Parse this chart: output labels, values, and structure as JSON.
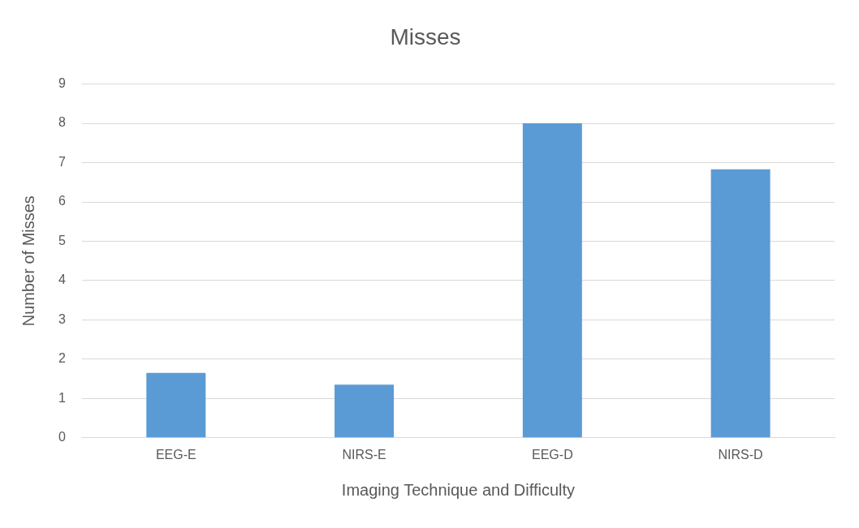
{
  "chart_data": {
    "type": "bar",
    "title": "Misses",
    "xlabel": "Imaging Technique and Difficulty",
    "ylabel": "Number of Misses",
    "categories": [
      "EEG-E",
      "NIRS-E",
      "EEG-D",
      "NIRS-D"
    ],
    "values": [
      1.65,
      1.35,
      8,
      6.83
    ],
    "color": "#5b9bd5",
    "ylim": [
      0,
      9
    ],
    "yticks": [
      0,
      1,
      2,
      3,
      4,
      5,
      6,
      7,
      8,
      9
    ],
    "grid": "y",
    "legend": false
  }
}
